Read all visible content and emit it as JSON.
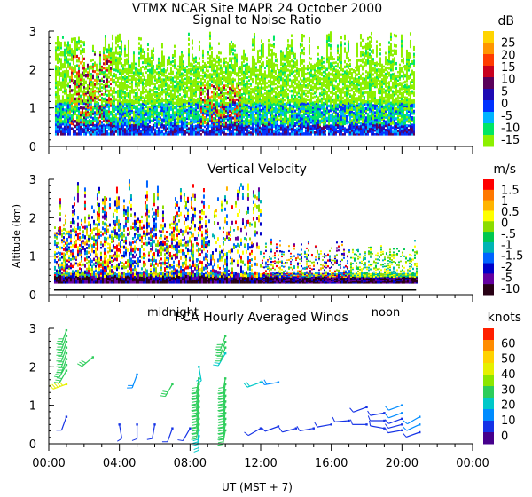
{
  "header": {
    "title": "VTMX  NCAR Site  MAPR 24 October 2000"
  },
  "chart_data": [
    {
      "type": "heatmap",
      "title": "Signal to Noise Ratio",
      "ylabel": "",
      "ylim": [
        0,
        3
      ],
      "yticks": [
        "0",
        "1",
        "2",
        "3"
      ],
      "colorbar": {
        "unit": "dB",
        "labels": [
          "25",
          "20",
          "15",
          "10",
          "5",
          "0",
          "-5",
          "-10",
          "-15"
        ],
        "colors": [
          "#ffd400",
          "#ff9600",
          "#ff3c00",
          "#c8001e",
          "#5a005a",
          "#1e0ab4",
          "#0032ff",
          "#00b4ff",
          "#00e664",
          "#8cf000"
        ]
      }
    },
    {
      "type": "heatmap",
      "title": "Vertical Velocity",
      "ylabel": "Altitude (km)",
      "ylim": [
        0,
        3
      ],
      "yticks": [
        "0",
        "1",
        "2",
        "3"
      ],
      "time_annotations": [
        "midnight",
        "noon"
      ],
      "colorbar": {
        "unit": "m/s",
        "labels": [
          "1.5",
          "1",
          "0.5",
          "0",
          "-.5",
          "-1",
          "-1.5",
          "-2",
          "-5",
          "-10"
        ],
        "colors": [
          "#ff0000",
          "#ff7800",
          "#ffb400",
          "#ffff00",
          "#8cdc00",
          "#00c850",
          "#00b4b4",
          "#0064ff",
          "#0000c8",
          "#6400a0",
          "#280014"
        ]
      }
    },
    {
      "type": "scatter",
      "title": "FCA Hourly Averaged Winds",
      "xlabel": "UT  (MST + 7)",
      "ylim": [
        0,
        3
      ],
      "yticks": [
        "0",
        "1",
        "2",
        "3"
      ],
      "xticks": [
        "00:00",
        "04:00",
        "08:00",
        "12:00",
        "16:00",
        "20:00",
        "00:00"
      ],
      "xlim_hours": [
        0,
        24
      ],
      "colorbar": {
        "unit": "knots",
        "labels": [
          "60",
          "50",
          "40",
          "30",
          "20",
          "10",
          "0"
        ],
        "colors": [
          "#ff2000",
          "#ff8c00",
          "#ffd200",
          "#e6f000",
          "#8ce600",
          "#2ccd5a",
          "#00c8c8",
          "#008cff",
          "#1432e6",
          "#46008c"
        ]
      },
      "wind_columns": [
        {
          "hour": 1.0,
          "alts": [
            0.7,
            1.55,
            1.9,
            2.05,
            2.2,
            2.35,
            2.5,
            2.65,
            2.8,
            2.95
          ],
          "speed": [
            12,
            45,
            30,
            30,
            30,
            30,
            30,
            30,
            30,
            30
          ],
          "dir": [
            200,
            250,
            210,
            210,
            200,
            200,
            200,
            200,
            200,
            200
          ]
        },
        {
          "hour": 2.5,
          "alts": [
            2.25
          ],
          "speed": [
            32
          ],
          "dir": [
            230
          ]
        },
        {
          "hour": 4.0,
          "alts": [
            0.5
          ],
          "speed": [
            8
          ],
          "dir": [
            170
          ]
        },
        {
          "hour": 5.0,
          "alts": [
            0.5,
            1.8
          ],
          "speed": [
            8,
            18
          ],
          "dir": [
            180,
            200
          ]
        },
        {
          "hour": 6.0,
          "alts": [
            0.5
          ],
          "speed": [
            8
          ],
          "dir": [
            190
          ]
        },
        {
          "hour": 7.0,
          "alts": [
            0.4,
            1.55
          ],
          "speed": [
            8,
            28
          ],
          "dir": [
            200,
            210
          ]
        },
        {
          "hour": 8.0,
          "alts": [
            0.4
          ],
          "speed": [
            8
          ],
          "dir": [
            210
          ]
        },
        {
          "hour": 8.5,
          "alts": [
            0.2,
            0.35,
            0.5,
            0.65,
            0.8,
            0.95,
            1.1,
            1.25,
            1.4,
            1.55,
            1.7,
            2.0
          ],
          "speed": [
            22,
            25,
            30,
            30,
            30,
            30,
            30,
            30,
            30,
            30,
            30,
            20
          ],
          "dir": [
            180,
            185,
            190,
            190,
            190,
            190,
            190,
            190,
            190,
            190,
            190,
            170
          ]
        },
        {
          "hour": 10.0,
          "alts": [
            0.35,
            0.5,
            0.65,
            0.8,
            0.95,
            1.1,
            1.25,
            1.4,
            1.55,
            1.7,
            2.35,
            2.5,
            2.65,
            2.8
          ],
          "speed": [
            28,
            28,
            28,
            28,
            28,
            28,
            28,
            28,
            28,
            28,
            24,
            28,
            28,
            28
          ],
          "dir": [
            190,
            190,
            190,
            190,
            190,
            190,
            190,
            190,
            190,
            190,
            210,
            200,
            200,
            200
          ]
        },
        {
          "hour": 12.0,
          "alts": [
            0.4,
            1.6
          ],
          "speed": [
            10,
            20
          ],
          "dir": [
            240,
            250
          ]
        },
        {
          "hour": 13.0,
          "alts": [
            0.45,
            1.6
          ],
          "speed": [
            9,
            16
          ],
          "dir": [
            250,
            260
          ]
        },
        {
          "hour": 14.0,
          "alts": [
            0.4
          ],
          "speed": [
            8
          ],
          "dir": [
            255
          ]
        },
        {
          "hour": 15.0,
          "alts": [
            0.4
          ],
          "speed": [
            8
          ],
          "dir": [
            260
          ]
        },
        {
          "hour": 16.0,
          "alts": [
            0.5
          ],
          "speed": [
            8
          ],
          "dir": [
            260
          ]
        },
        {
          "hour": 17.0,
          "alts": [
            0.6
          ],
          "speed": [
            8
          ],
          "dir": [
            265
          ]
        },
        {
          "hour": 18.0,
          "alts": [
            0.5,
            0.95
          ],
          "speed": [
            8,
            12
          ],
          "dir": [
            270,
            250
          ]
        },
        {
          "hour": 19.0,
          "alts": [
            0.4,
            0.6,
            0.8
          ],
          "speed": [
            9,
            9,
            9
          ],
          "dir": [
            280,
            270,
            260
          ]
        },
        {
          "hour": 20.0,
          "alts": [
            0.35,
            0.5,
            0.65,
            0.8,
            1.0
          ],
          "speed": [
            12,
            12,
            12,
            14,
            14
          ],
          "dir": [
            260,
            255,
            250,
            250,
            250
          ]
        },
        {
          "hour": 21.0,
          "alts": [
            0.3,
            0.5,
            0.7
          ],
          "speed": [
            10,
            14,
            14
          ],
          "dir": [
            250,
            245,
            240
          ]
        }
      ]
    }
  ]
}
